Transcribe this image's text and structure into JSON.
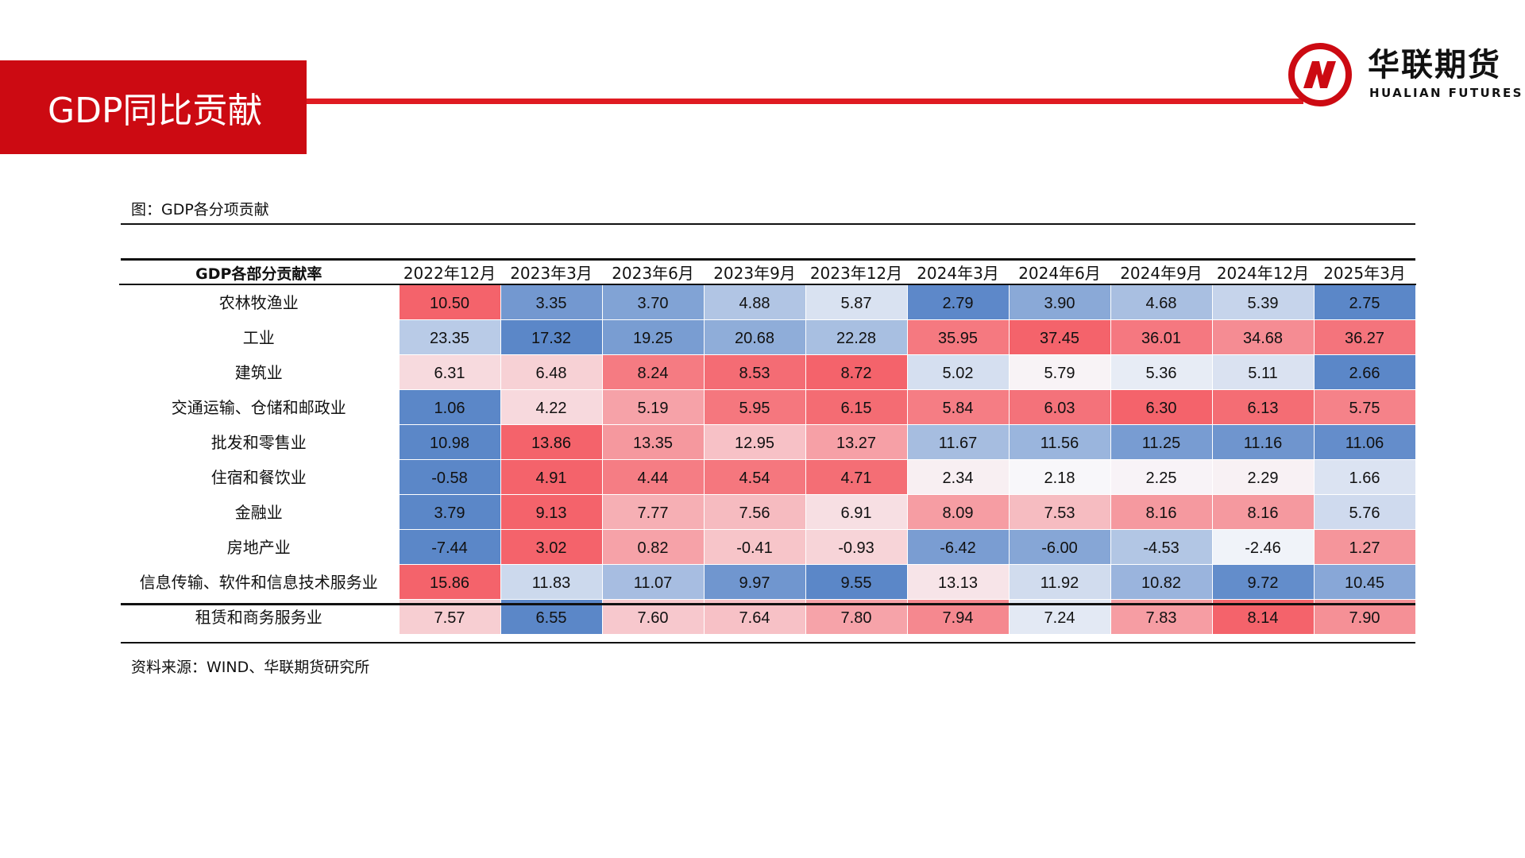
{
  "header": {
    "title": "GDP同比贡献",
    "brand_cn": "华联期货",
    "brand_en": "HUALIAN FUTURES",
    "accent_color": "#cc0a12"
  },
  "figure": {
    "caption": "图：GDP各分项贡献",
    "source": "资料来源：WIND、华联期货研究所"
  },
  "table": {
    "corner_label": "GDP各部分贡献率",
    "columns": [
      "2022年12月",
      "2023年3月",
      "2023年6月",
      "2023年9月",
      "2023年12月",
      "2024年3月",
      "2024年6月",
      "2024年9月",
      "2024年12月",
      "2025年3月"
    ],
    "rows": [
      {
        "label": "农林牧渔业",
        "values": [
          "10.50",
          "3.35",
          "3.70",
          "4.88",
          "5.87",
          "2.79",
          "3.90",
          "4.68",
          "5.39",
          "2.75"
        ]
      },
      {
        "label": "工业",
        "values": [
          "23.35",
          "17.32",
          "19.25",
          "20.68",
          "22.28",
          "35.95",
          "37.45",
          "36.01",
          "34.68",
          "36.27"
        ]
      },
      {
        "label": "建筑业",
        "values": [
          "6.31",
          "6.48",
          "8.24",
          "8.53",
          "8.72",
          "5.02",
          "5.79",
          "5.36",
          "5.11",
          "2.66"
        ]
      },
      {
        "label": "交通运输、仓储和邮政业",
        "values": [
          "1.06",
          "4.22",
          "5.19",
          "5.95",
          "6.15",
          "5.84",
          "6.03",
          "6.30",
          "6.13",
          "5.75"
        ]
      },
      {
        "label": "批发和零售业",
        "values": [
          "10.98",
          "13.86",
          "13.35",
          "12.95",
          "13.27",
          "11.67",
          "11.56",
          "11.25",
          "11.16",
          "11.06"
        ]
      },
      {
        "label": "住宿和餐饮业",
        "values": [
          "-0.58",
          "4.91",
          "4.44",
          "4.54",
          "4.71",
          "2.34",
          "2.18",
          "2.25",
          "2.29",
          "1.66"
        ]
      },
      {
        "label": "金融业",
        "values": [
          "3.79",
          "9.13",
          "7.77",
          "7.56",
          "6.91",
          "8.09",
          "7.53",
          "8.16",
          "8.16",
          "5.76"
        ]
      },
      {
        "label": "房地产业",
        "values": [
          "-7.44",
          "3.02",
          "0.82",
          "-0.41",
          "-0.93",
          "-6.42",
          "-6.00",
          "-4.53",
          "-2.46",
          "1.27"
        ]
      },
      {
        "label": "信息传输、软件和信息技术服务业",
        "values": [
          "15.86",
          "11.83",
          "11.07",
          "9.97",
          "9.55",
          "13.13",
          "11.92",
          "10.82",
          "9.72",
          "10.45"
        ]
      },
      {
        "label": "租赁和商务服务业",
        "values": [
          "7.57",
          "6.55",
          "7.60",
          "7.64",
          "7.80",
          "7.94",
          "7.24",
          "7.83",
          "8.14",
          "7.90"
        ]
      }
    ],
    "heatmap_colors": {
      "low": "#5b87c8",
      "mid": "#f8f8fb",
      "high": "#f4636b"
    }
  }
}
